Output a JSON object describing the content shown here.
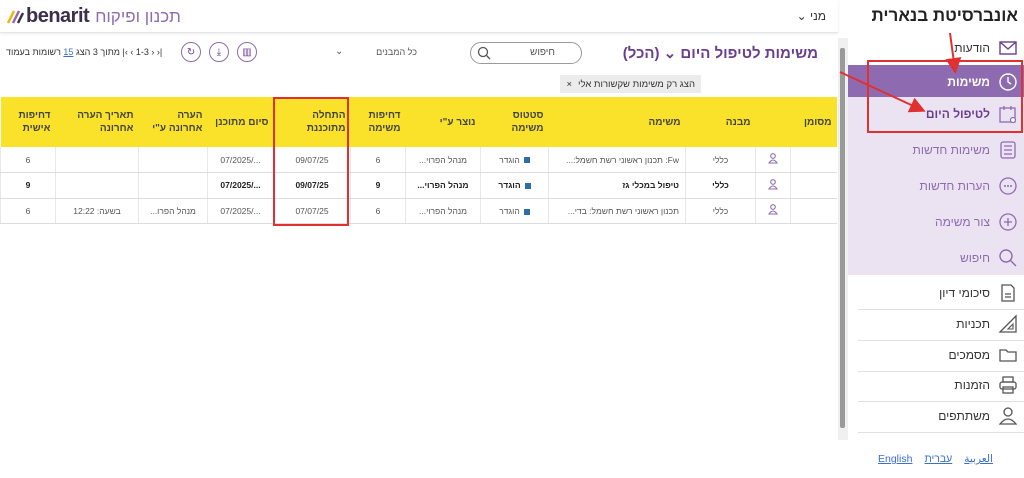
{
  "header": {
    "logo_word": "benarit",
    "logo_hebrew": "תכנון ופיקוח",
    "user": "מני",
    "user_chevron": "chevron-down-icon"
  },
  "toolbar": {
    "title": "משימות לטיפול היום",
    "title_suffix": "(הכל)",
    "search_placeholder": "חיפוש",
    "buildings_select": "כל המבנים",
    "pager": {
      "show": "הצג",
      "page_size": "15",
      "per_page": "רשומות בעמוד",
      "of_label": "מתוך",
      "total": "3",
      "range": "1-3"
    }
  },
  "filter_chip": {
    "label": "הצג רק משימות שקשורות אלי",
    "close": "×"
  },
  "table": {
    "columns": [
      "מסומן",
      "",
      "מבנה",
      "משימה",
      "סטטוס משימה",
      "נוצר ע\"י",
      "דחיפות משימה",
      "התחלה מתוכננת",
      "סיום מתוכנן",
      "הערה אחרונה ע\"י",
      "תאריך הערה אחרונה",
      "דחיפות אישית"
    ],
    "rows": [
      {
        "bold": false,
        "marked": "",
        "building": "כללי",
        "task": "Fw: תכנון ראשוני רשת חשמל:...",
        "status": "הוגדר",
        "created_by": "מנהל הפרוי...",
        "task_urgency": "6",
        "start": "09/07/25",
        "end": ".../07/2025",
        "last_comment_by": "",
        "last_comment_date": "",
        "personal_urgency": "6"
      },
      {
        "bold": true,
        "marked": "",
        "building": "כללי",
        "task": "טיפול במכלי גז",
        "status": "הוגדר",
        "created_by": "מנהל הפרוי...",
        "task_urgency": "9",
        "start": "09/07/25",
        "end": ".../07/2025",
        "last_comment_by": "",
        "last_comment_date": "",
        "personal_urgency": "9"
      },
      {
        "bold": false,
        "marked": "",
        "building": "כללי",
        "task": "תכנון ראשוני רשת חשמל: בדי...",
        "status": "הוגדר",
        "created_by": "מנהל הפרוי...",
        "task_urgency": "6",
        "start": "07/07/25",
        "end": ".../07/2025",
        "last_comment_by": "מנהל הפרו...",
        "last_comment_date": "בשעה: 12:22",
        "personal_urgency": "6"
      }
    ]
  },
  "sidebar": {
    "title": "אונברסיטת בנארית",
    "items": [
      {
        "label": "הודעות",
        "icon": "envelope-icon"
      },
      {
        "label": "משימות",
        "icon": "clock-icon"
      },
      {
        "label": "לטיפול היום",
        "icon": "calendar-bell-icon"
      },
      {
        "label": "משימות חדשות",
        "icon": "list-icon"
      },
      {
        "label": "הערות חדשות",
        "icon": "chat-bubble-icon"
      },
      {
        "label": "צור משימה",
        "icon": "plus-circle-icon"
      },
      {
        "label": "חיפוש",
        "icon": "search-icon"
      },
      {
        "label": "סיכומי דיון",
        "icon": "document-icon"
      },
      {
        "label": "תכניות",
        "icon": "triangle-ruler-icon"
      },
      {
        "label": "מסמכים",
        "icon": "folder-icon"
      },
      {
        "label": "הזמנות",
        "icon": "printer-icon"
      },
      {
        "label": "משתתפים",
        "icon": "person-icon"
      }
    ],
    "languages": [
      "English",
      "עברית",
      "العربية"
    ]
  },
  "colors": {
    "accent": "#8e6bb0",
    "header_yellow": "#fbe22a",
    "annotation_red": "#e03030",
    "status_blue": "#2d6ea8"
  }
}
